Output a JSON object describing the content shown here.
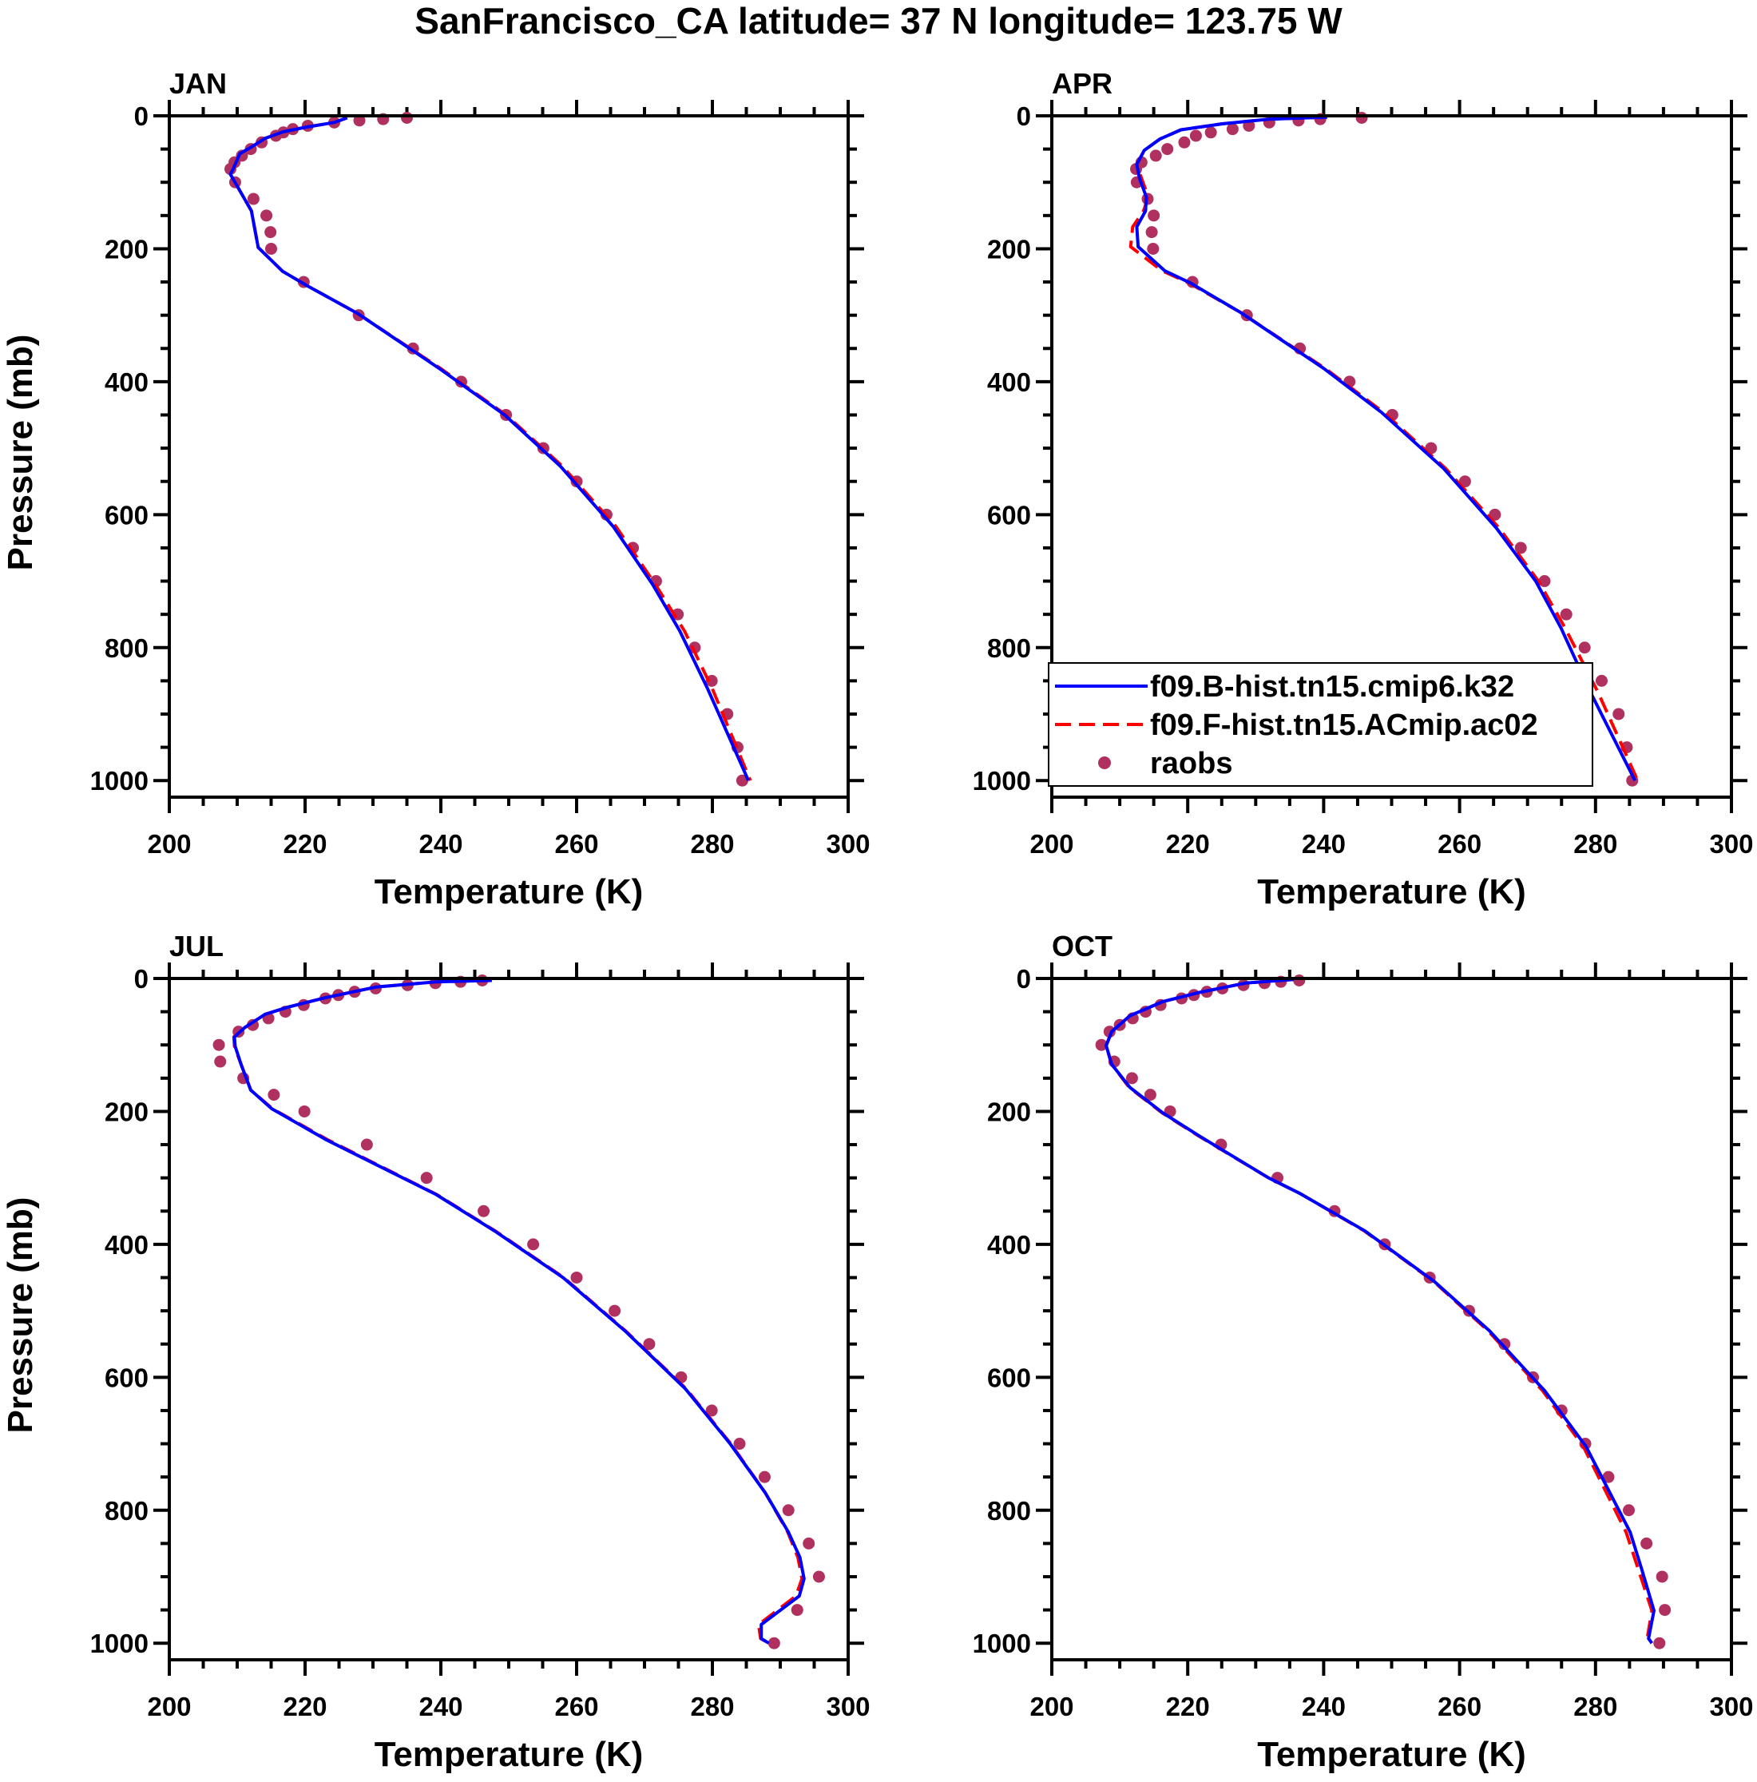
{
  "title": "SanFrancisco_CA  latitude= 37 N longitude= 123.75 W",
  "colors": {
    "model_b": "#0000ff",
    "model_f": "#ff0000",
    "raobs": "#b03060",
    "axis": "#000000"
  },
  "legend": {
    "panel": "APR",
    "placement": "lower-left",
    "entries": [
      {
        "label": "f09.B-hist.tn15.cmip6.k32",
        "style": "solid-line"
      },
      {
        "label": "f09.F-hist.tn15.ACmip.ac02",
        "style": "dashed-line"
      },
      {
        "label": "raobs",
        "style": "marker"
      }
    ]
  },
  "chart_data": [
    {
      "type": "line",
      "title": "JAN",
      "xlabel": "Temperature (K)",
      "ylabel": "Pressure (mb)",
      "xlim": [
        200,
        300
      ],
      "ylim": [
        1025,
        0
      ],
      "y_reversed": true,
      "xticks": [
        200,
        220,
        240,
        260,
        280,
        300
      ],
      "yticks": [
        0,
        200,
        400,
        600,
        800,
        1000
      ],
      "series": [
        {
          "name": "f09.B-hist.tn15.cmip6.k32",
          "kind": "line",
          "p": [
            3,
            10,
            17,
            24,
            34,
            47,
            57,
            80,
            88,
            143,
            198,
            234,
            255,
            297,
            381,
            450,
            527,
            618,
            705,
            775,
            862,
            1000
          ],
          "t": [
            226.2,
            224.3,
            220.2,
            216.8,
            214.1,
            212.1,
            210.4,
            209.4,
            209,
            212.1,
            213.1,
            216.7,
            220.2,
            227.7,
            239.9,
            249.4,
            257.6,
            265.4,
            271.2,
            275.2,
            279.3,
            285.3
          ]
        },
        {
          "name": "f09.F-hist.tn15.ACmip.ac02",
          "kind": "dashed",
          "p": [
            3,
            10,
            17,
            24,
            34,
            47,
            57,
            80,
            88,
            143,
            198,
            234,
            255,
            297,
            381,
            450,
            527,
            618,
            705,
            775,
            862,
            1000
          ],
          "t": [
            226.2,
            224.3,
            220.2,
            216.8,
            214.1,
            212.1,
            210.4,
            209.4,
            209,
            212.1,
            213.1,
            216.7,
            220.2,
            227.7,
            240.1,
            249.6,
            257.9,
            265.8,
            271.6,
            275.9,
            280,
            285.6
          ]
        },
        {
          "name": "raobs",
          "kind": "marker",
          "p": [
            1000,
            950,
            900,
            850,
            800,
            750,
            700,
            650,
            600,
            550,
            500,
            450,
            400,
            350,
            300,
            250,
            200,
            175,
            150,
            125,
            100,
            80,
            70,
            60,
            50,
            40,
            30,
            25,
            20,
            15,
            10,
            7,
            5,
            3
          ],
          "t": [
            284.4,
            283.7,
            282.2,
            279.9,
            277.4,
            274.9,
            271.7,
            268.3,
            264.4,
            260,
            255.1,
            249.6,
            243,
            235.9,
            227.9,
            219.8,
            215,
            214.9,
            214.3,
            212.4,
            209.7,
            209,
            209.6,
            210.7,
            212,
            213.6,
            215.7,
            216.8,
            218.2,
            220.4,
            224.3,
            228,
            231.5,
            235
          ]
        }
      ]
    },
    {
      "type": "line",
      "title": "APR",
      "xlabel": "Temperature (K)",
      "ylabel": "",
      "xlim": [
        200,
        300
      ],
      "ylim": [
        1025,
        0
      ],
      "y_reversed": true,
      "xticks": [
        200,
        220,
        240,
        260,
        280,
        300
      ],
      "yticks": [
        0,
        200,
        400,
        600,
        800,
        1000
      ],
      "series": [
        {
          "name": "f09.B-hist.tn15.cmip6.k32",
          "kind": "line",
          "p": [
            2,
            5,
            12,
            21,
            35,
            52,
            73,
            94,
            122,
            143,
            167,
            197,
            233,
            251,
            296,
            380,
            446,
            530,
            620,
            700,
            770,
            868,
            1000
          ],
          "t": [
            240.5,
            231.9,
            225.1,
            219,
            215.9,
            213.6,
            212.5,
            212.9,
            213.9,
            213.8,
            212.5,
            212.7,
            216.6,
            220.3,
            227.8,
            240,
            248.5,
            257.6,
            265.4,
            271.2,
            274.9,
            279.3,
            285.8
          ]
        },
        {
          "name": "f09.F-hist.tn15.ACmip.ac02",
          "kind": "dashed",
          "p": [
            2,
            5,
            12,
            21,
            35,
            52,
            73,
            94,
            122,
            143,
            167,
            197,
            233,
            251,
            296,
            380,
            446,
            530,
            620,
            700,
            770,
            868,
            1000
          ],
          "t": [
            240.5,
            231.9,
            225.1,
            219,
            215.9,
            213.6,
            212.5,
            213.2,
            214.2,
            213.5,
            211.9,
            211.6,
            216.2,
            220.1,
            227.8,
            240.2,
            248.8,
            257.9,
            265.8,
            271.6,
            275.5,
            280.4,
            286.2
          ]
        },
        {
          "name": "raobs",
          "kind": "marker",
          "p": [
            1000,
            950,
            900,
            850,
            800,
            750,
            700,
            650,
            600,
            550,
            500,
            450,
            400,
            350,
            300,
            250,
            200,
            175,
            150,
            125,
            100,
            80,
            70,
            60,
            50,
            40,
            30,
            25,
            20,
            15,
            10,
            7,
            5,
            3
          ],
          "t": [
            285.4,
            284.6,
            283.4,
            280.9,
            278.4,
            275.7,
            272.5,
            269,
            265.2,
            260.8,
            255.8,
            250.1,
            243.8,
            236.5,
            228.7,
            220.7,
            214.9,
            214.7,
            215,
            214.1,
            212.5,
            212.4,
            213.2,
            215.3,
            217,
            219.5,
            221.2,
            223.4,
            226.6,
            229,
            232,
            236.3,
            239.5,
            245.6
          ]
        }
      ]
    },
    {
      "type": "line",
      "title": "JUL",
      "xlabel": "Temperature (K)",
      "ylabel": "Pressure (mb)",
      "xlim": [
        200,
        300
      ],
      "ylim": [
        1025,
        0
      ],
      "y_reversed": true,
      "xticks": [
        200,
        220,
        240,
        260,
        280,
        300
      ],
      "yticks": [
        0,
        200,
        400,
        600,
        800,
        1000
      ],
      "series": [
        {
          "name": "f09.B-hist.tn15.cmip6.k32",
          "kind": "line",
          "p": [
            3,
            5,
            13,
            29,
            43,
            54,
            74,
            88,
            102,
            130,
            168,
            196,
            242,
            325,
            381,
            450,
            530,
            617,
            701,
            774,
            833,
            871,
            903,
            929,
            972,
            993,
            1000
          ],
          "t": [
            247.5,
            239.3,
            230.4,
            223,
            217.5,
            214.1,
            211.1,
            209.6,
            209.7,
            210.6,
            212,
            215.1,
            223,
            239.3,
            248.1,
            258,
            267.1,
            276,
            282.7,
            287.8,
            291.2,
            292.9,
            293.5,
            292.8,
            287.2,
            287.2,
            288.3
          ]
        },
        {
          "name": "f09.F-hist.tn15.ACmip.ac02",
          "kind": "dashed",
          "p": [
            3,
            5,
            13,
            29,
            43,
            54,
            74,
            88,
            102,
            130,
            168,
            196,
            242,
            325,
            381,
            450,
            530,
            617,
            701,
            774,
            833,
            871,
            903,
            929,
            972,
            993,
            1000
          ],
          "t": [
            247.5,
            239.3,
            230.4,
            223,
            217.5,
            214.1,
            211.1,
            209.5,
            209.6,
            210.6,
            212,
            215.2,
            223.2,
            239.4,
            248.2,
            258.1,
            267.2,
            276.1,
            282.8,
            287.8,
            291.1,
            292.6,
            293.2,
            292.3,
            286.8,
            287.1,
            288.3
          ]
        },
        {
          "name": "raobs",
          "kind": "marker",
          "p": [
            1000,
            950,
            900,
            850,
            800,
            750,
            700,
            650,
            600,
            550,
            500,
            450,
            400,
            350,
            300,
            250,
            200,
            175,
            150,
            125,
            100,
            80,
            70,
            60,
            50,
            40,
            30,
            25,
            20,
            15,
            10,
            7,
            5,
            3
          ],
          "t": [
            289.1,
            292.5,
            295.7,
            294.2,
            291.2,
            287.7,
            284,
            279.9,
            275.4,
            270.7,
            265.6,
            260,
            253.6,
            246.3,
            237.9,
            229.1,
            219.9,
            215.4,
            210.9,
            207.5,
            207.3,
            210.2,
            212.3,
            214.6,
            217.1,
            219.8,
            223,
            224.9,
            227.3,
            230.4,
            235.1,
            239.2,
            242.9,
            246.1
          ]
        }
      ]
    },
    {
      "type": "line",
      "title": "OCT",
      "xlabel": "Temperature (K)",
      "ylabel": "",
      "xlim": [
        200,
        300
      ],
      "ylim": [
        1025,
        0
      ],
      "y_reversed": true,
      "xticks": [
        200,
        220,
        240,
        260,
        280,
        300
      ],
      "yticks": [
        0,
        200,
        400,
        600,
        800,
        1000
      ],
      "series": [
        {
          "name": "f09.B-hist.tn15.cmip6.k32",
          "kind": "line",
          "p": [
            1.5,
            7,
            21,
            35,
            56,
            80,
            101,
            129,
            164,
            202,
            237,
            300,
            324,
            380,
            456,
            530,
            620,
            704,
            833,
            889,
            951,
            993,
            1000
          ],
          "t": [
            235.6,
            228.5,
            221.7,
            216.3,
            211.5,
            208.8,
            208,
            208.8,
            211.5,
            216.3,
            221.7,
            231.9,
            236.6,
            246.1,
            256.3,
            264.4,
            272.5,
            278.6,
            285.1,
            286.8,
            288.6,
            287.8,
            288.3
          ]
        },
        {
          "name": "f09.F-hist.tn15.ACmip.ac02",
          "kind": "dashed",
          "p": [
            1.5,
            7,
            21,
            35,
            56,
            80,
            101,
            129,
            164,
            202,
            237,
            300,
            324,
            380,
            456,
            530,
            620,
            704,
            833,
            889,
            951,
            993,
            1000
          ],
          "t": [
            235.6,
            228.5,
            221.7,
            216.3,
            211.5,
            208.8,
            208,
            208.8,
            211.4,
            216.2,
            221.6,
            231.9,
            236.6,
            246,
            256.2,
            264.2,
            272.2,
            278.2,
            284.5,
            286.3,
            288.3,
            287.6,
            288.2
          ]
        },
        {
          "name": "raobs",
          "kind": "marker",
          "p": [
            1000,
            950,
            900,
            850,
            800,
            750,
            700,
            650,
            600,
            550,
            500,
            450,
            400,
            350,
            300,
            250,
            200,
            175,
            150,
            125,
            100,
            80,
            70,
            60,
            50,
            40,
            30,
            25,
            20,
            15,
            10,
            7,
            5,
            3
          ],
          "t": [
            289.4,
            290.2,
            289.8,
            287.5,
            284.9,
            281.9,
            278.5,
            275,
            270.8,
            266.6,
            261.4,
            255.6,
            249,
            241.6,
            233.2,
            224.9,
            217.4,
            214.5,
            211.8,
            209.2,
            207.3,
            208.5,
            210,
            211.9,
            213.8,
            216,
            219.1,
            220.9,
            222.8,
            225.1,
            228.2,
            231.3,
            233.7,
            236.4
          ]
        }
      ]
    }
  ]
}
